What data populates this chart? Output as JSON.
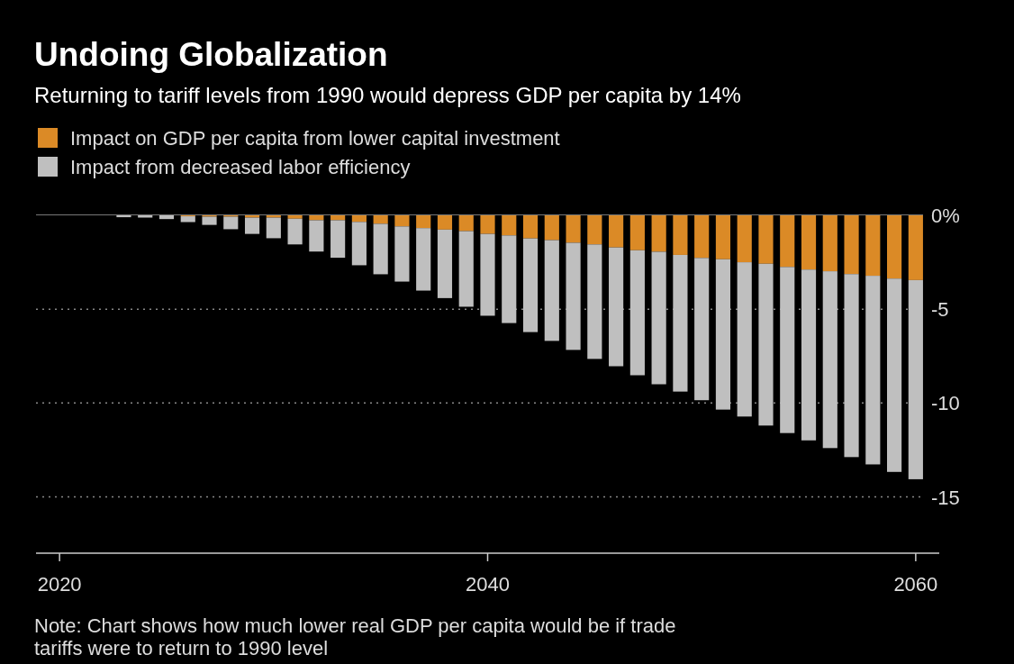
{
  "chart_data": {
    "type": "bar",
    "stacked": true,
    "title": "Undoing Globalization",
    "subtitle": "Returning to tariff levels from 1990 would depress GDP per capita by 14%",
    "x": [
      2023,
      2024,
      2025,
      2026,
      2027,
      2028,
      2029,
      2030,
      2031,
      2032,
      2033,
      2034,
      2035,
      2036,
      2037,
      2038,
      2039,
      2040,
      2041,
      2042,
      2043,
      2044,
      2045,
      2046,
      2047,
      2048,
      2049,
      2050,
      2051,
      2052,
      2053,
      2054,
      2055,
      2056,
      2057,
      2058,
      2059,
      2060
    ],
    "series": [
      {
        "name": "Impact on GDP per capita from lower capital investment",
        "color": "#db8a26",
        "values": [
          null,
          null,
          null,
          -0.05,
          -0.07,
          -0.07,
          -0.12,
          -0.12,
          -0.18,
          -0.26,
          -0.26,
          -0.35,
          -0.45,
          -0.59,
          -0.68,
          -0.76,
          -0.84,
          -0.99,
          -1.07,
          -1.23,
          -1.32,
          -1.46,
          -1.55,
          -1.71,
          -1.86,
          -1.94,
          -2.11,
          -2.27,
          -2.34,
          -2.5,
          -2.58,
          -2.75,
          -2.89,
          -2.98,
          -3.13,
          -3.22,
          -3.37,
          -3.45
        ]
      },
      {
        "name": "Impact from decreased labor efficiency",
        "color": "#bfbfbf",
        "values": [
          -0.1,
          -0.12,
          -0.2,
          -0.31,
          -0.44,
          -0.67,
          -0.87,
          -1.1,
          -1.37,
          -1.67,
          -2.0,
          -2.31,
          -2.69,
          -2.94,
          -3.33,
          -3.65,
          -4.03,
          -4.36,
          -4.67,
          -4.99,
          -5.37,
          -5.71,
          -6.1,
          -6.33,
          -6.66,
          -7.06,
          -7.28,
          -7.58,
          -8.01,
          -8.22,
          -8.62,
          -8.85,
          -9.1,
          -9.42,
          -9.75,
          -10.05,
          -10.3,
          -10.61
        ]
      }
    ],
    "xlim": [
      2018.9,
      2061.1
    ],
    "xticks": [
      2020,
      2040,
      2060
    ],
    "ylim": [
      -18,
      0
    ],
    "yticks": [
      {
        "value": 0,
        "label": "0%"
      },
      -5,
      -10,
      -15
    ],
    "grid": "y",
    "legend": "top left",
    "annotations": [
      "Note: Chart shows how much lower real GDP per capita would be if trade tariffs were to return to 1990 level"
    ]
  }
}
